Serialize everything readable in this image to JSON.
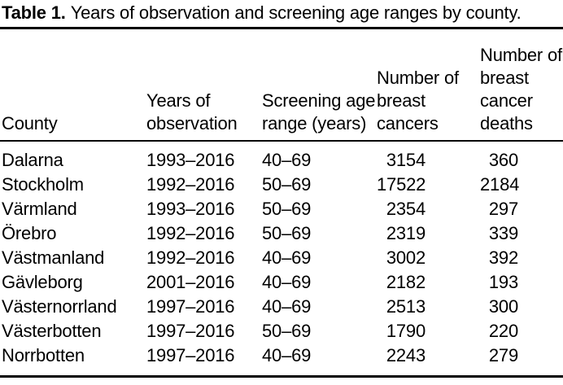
{
  "caption": {
    "label": "Table 1.",
    "text": "Years of observation and screening age ranges by county."
  },
  "table": {
    "columns": [
      "County",
      "Years of observation",
      "Screening age range (years)",
      "Number of breast cancers",
      "Number of breast cancer deaths"
    ],
    "rows": [
      {
        "county": "Dalarna",
        "years": "1993–2016",
        "age_range": "40–69",
        "cancers": "3154",
        "deaths": "360"
      },
      {
        "county": "Stockholm",
        "years": "1992–2016",
        "age_range": "50–69",
        "cancers": "17522",
        "deaths": "2184"
      },
      {
        "county": "Värmland",
        "years": "1993–2016",
        "age_range": "50–69",
        "cancers": "2354",
        "deaths": "297"
      },
      {
        "county": "Örebro",
        "years": "1992–2016",
        "age_range": "50–69",
        "cancers": "2319",
        "deaths": "339"
      },
      {
        "county": "Västmanland",
        "years": "1992–2016",
        "age_range": "40–69",
        "cancers": "3002",
        "deaths": "392"
      },
      {
        "county": "Gävleborg",
        "years": "2001–2016",
        "age_range": "40–69",
        "cancers": "2182",
        "deaths": "193"
      },
      {
        "county": "Västernorrland",
        "years": "1997–2016",
        "age_range": "40–69",
        "cancers": "2513",
        "deaths": "300"
      },
      {
        "county": "Västerbotten",
        "years": "1997–2016",
        "age_range": "50–69",
        "cancers": "1790",
        "deaths": "220"
      },
      {
        "county": "Norrbotten",
        "years": "1997–2016",
        "age_range": "40–69",
        "cancers": "2243",
        "deaths": "279"
      }
    ]
  },
  "colors": {
    "text": "#000000",
    "background": "#ffffff",
    "rule": "#000000"
  }
}
